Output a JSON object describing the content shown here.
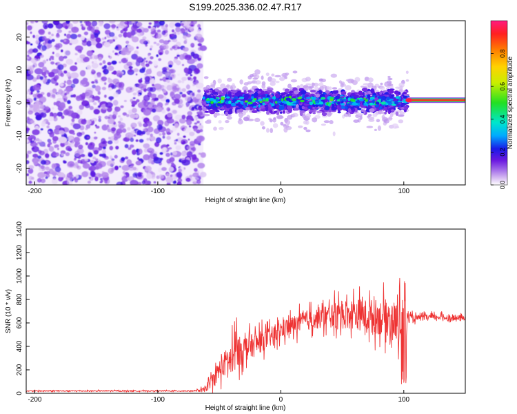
{
  "title": "S199.2025.336.02.47.R17",
  "chart_data": [
    {
      "type": "heatmap",
      "panel": "spectrogram",
      "xlabel": "Height of straight line (km)",
      "ylabel": "Frequency (Hz)",
      "xlim": [
        -207,
        150
      ],
      "ylim": [
        -25,
        25
      ],
      "xticks": [
        -200,
        -100,
        0,
        100
      ],
      "yticks": [
        -20,
        -10,
        0,
        10,
        20
      ],
      "colorbar": {
        "label": "Normalized spectral amplitude",
        "range": [
          0,
          1
        ],
        "ticks": [
          0.0,
          0.2,
          0.4,
          0.6,
          0.8
        ],
        "colors": [
          "#ffffff",
          "#cfb0f0",
          "#9a60e8",
          "#6a18e0",
          "#1a1ae8",
          "#00aaff",
          "#00e6cc",
          "#22e022",
          "#c8ee00",
          "#ffd200",
          "#ff8000",
          "#ff2020",
          "#ff1a80"
        ]
      },
      "regions": [
        {
          "name": "noise",
          "x": [
            -207,
            -63
          ],
          "freq": [
            -25,
            25
          ],
          "amplitude": "0.0-0.25"
        },
        {
          "name": "signal-band",
          "x": [
            -63,
            103
          ],
          "freq_center": 0.5,
          "freq_halfwidth": 4,
          "amplitude": "0.1-0.7"
        },
        {
          "name": "steady-tone",
          "x": [
            103,
            150
          ],
          "freq_center": 0.8,
          "amplitude": "0.8-1.0"
        }
      ]
    },
    {
      "type": "line",
      "panel": "snr",
      "xlabel": "Height of straight line (km)",
      "ylabel": "SNR (10 * v/v)",
      "xlim": [
        -207,
        150
      ],
      "ylim": [
        0,
        1400
      ],
      "xticks": [
        -200,
        -100,
        0,
        100
      ],
      "yticks": [
        0,
        200,
        400,
        600,
        800,
        1000,
        1200,
        1400
      ],
      "series": [
        {
          "name": "SNR",
          "color": "#ee3333",
          "x": [
            -207,
            -150,
            -100,
            -70,
            -62,
            -55,
            -50,
            -45,
            -40,
            -35,
            -30,
            -25,
            -20,
            -15,
            -10,
            -5,
            0,
            10,
            20,
            30,
            40,
            50,
            60,
            70,
            80,
            90,
            95,
            100,
            103,
            110,
            120,
            130,
            140,
            150
          ],
          "y": [
            20,
            20,
            20,
            20,
            30,
            120,
            200,
            260,
            300,
            350,
            380,
            400,
            420,
            450,
            470,
            500,
            540,
            580,
            620,
            640,
            660,
            670,
            680,
            660,
            650,
            640,
            600,
            580,
            640,
            640,
            650,
            650,
            640,
            640
          ],
          "spread": [
            10,
            10,
            10,
            10,
            40,
            120,
            180,
            220,
            240,
            260,
            220,
            200,
            200,
            180,
            170,
            160,
            160,
            160,
            170,
            180,
            200,
            240,
            260,
            280,
            300,
            320,
            330,
            500,
            80,
            50,
            50,
            50,
            50,
            50
          ]
        }
      ]
    }
  ]
}
